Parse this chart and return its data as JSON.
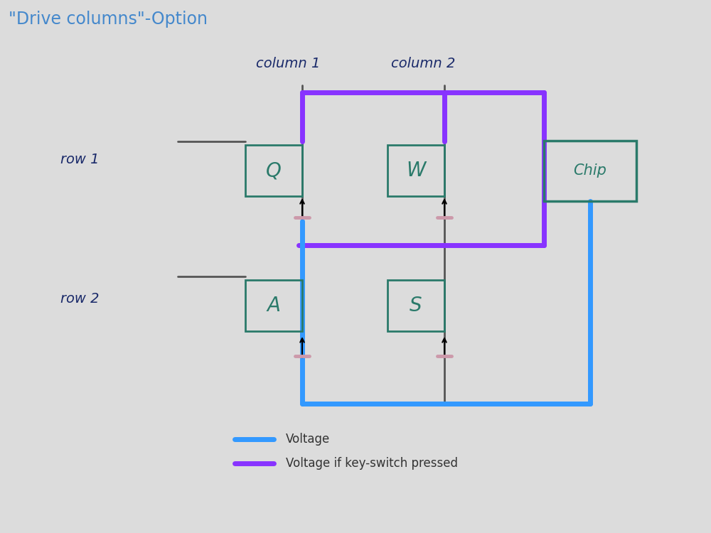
{
  "title": "\"Drive columns\"-Option",
  "title_color": "#4488cc",
  "title_fontsize": 17,
  "bg_color": "#dcdcdc",
  "handwriting_color": "#1a2a6a",
  "col1_label": "column 1",
  "col2_label": "column 2",
  "row1_label": "row 1",
  "row2_label": "row 2",
  "key_color": "#2a7a6a",
  "wire_color": "#555555",
  "blue_color": "#3399ff",
  "purple_color": "#8833ff",
  "diode_color": "#cc99aa",
  "legend_voltage": "Voltage",
  "legend_voltage_pressed": "Voltage if key-switch pressed",
  "lw_thick": 5,
  "lw_wire": 2
}
